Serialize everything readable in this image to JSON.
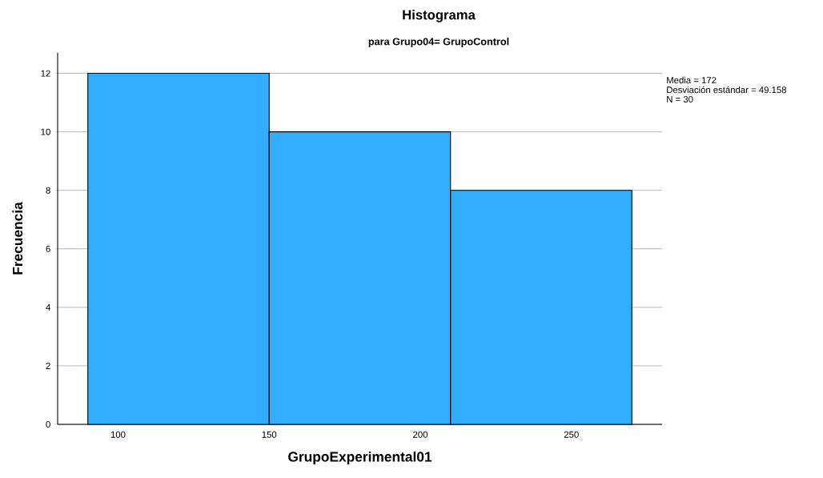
{
  "chart_data": {
    "type": "histogram",
    "title": "Histograma",
    "subtitle": "para Grupo04= GrupoControl",
    "xlabel": "GrupoExperimental01",
    "ylabel": "Frecuencia",
    "annotations": [
      "Media = 172",
      "Desviación estándar = 49.158",
      "N = 30"
    ],
    "bins": [
      90,
      150,
      210,
      270
    ],
    "values": [
      12,
      10,
      8
    ],
    "color": "#33adff",
    "xlim": [
      80,
      280
    ],
    "ylim": [
      0,
      12.7
    ],
    "xticks": [
      100,
      150,
      200,
      250
    ],
    "yticks": [
      0,
      2,
      4,
      6,
      8,
      10,
      12
    ],
    "grid": "y"
  }
}
